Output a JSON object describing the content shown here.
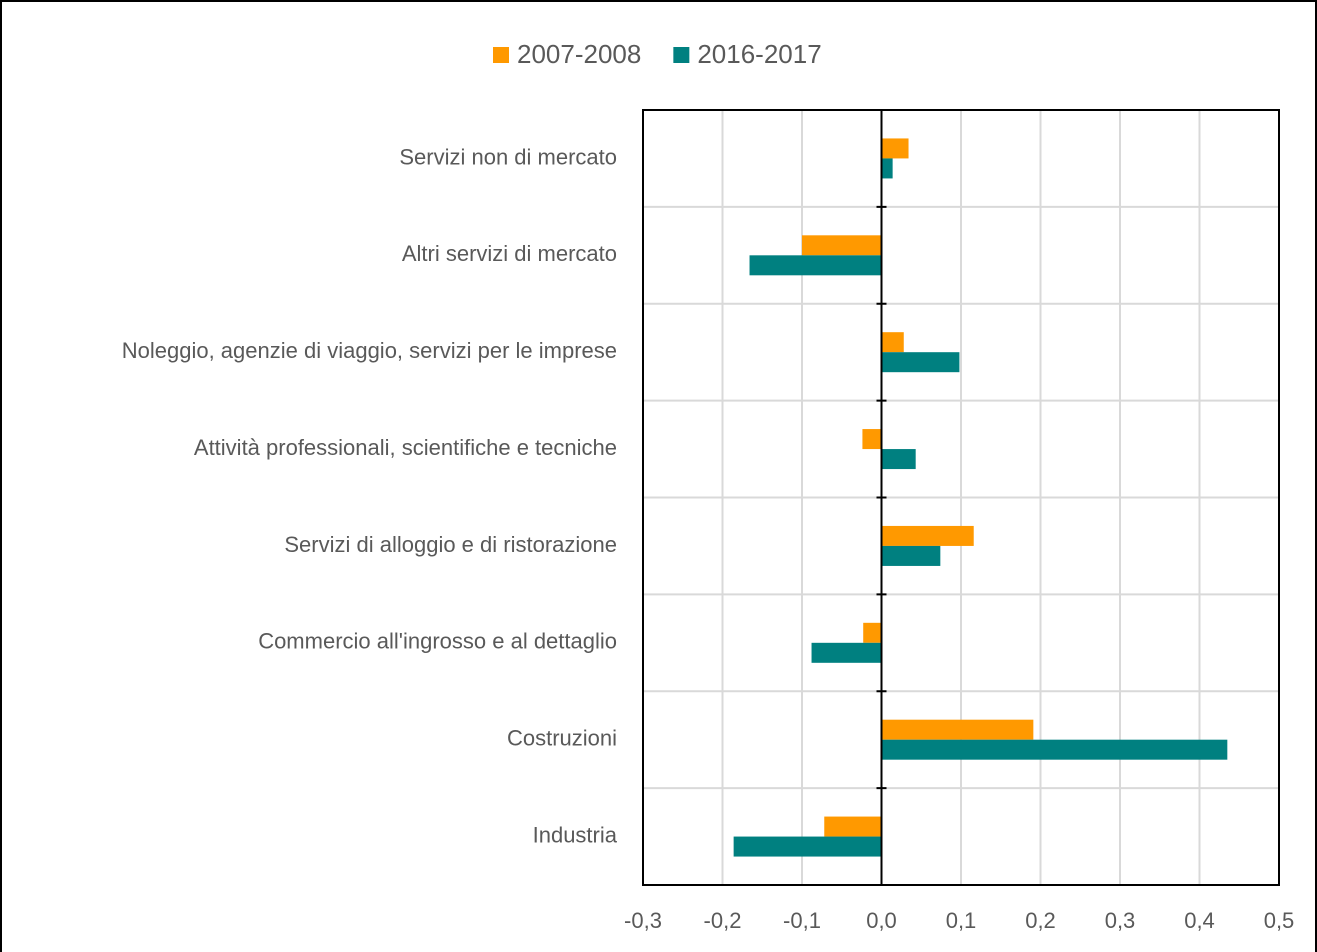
{
  "chart_data": {
    "type": "hbar",
    "categories": [
      "Servizi non di mercato",
      "Altri servizi di mercato",
      "Noleggio, agenzie di viaggio, servizi per le imprese",
      "Attività professionali, scientifiche e tecniche",
      "Servizi di alloggio e di ristorazione",
      "Commercio all'ingrosso e al dettaglio",
      "Costruzioni",
      "Industria"
    ],
    "series": [
      {
        "name": "2007-2008",
        "color": "#ff9900",
        "values": [
          0.034,
          -0.1,
          0.028,
          -0.024,
          0.116,
          -0.023,
          0.191,
          -0.072
        ]
      },
      {
        "name": "2016-2017",
        "color": "#008080",
        "values": [
          0.014,
          -0.166,
          0.098,
          0.043,
          0.074,
          -0.088,
          0.435,
          -0.186
        ]
      }
    ],
    "xlim": [
      -0.3,
      0.5
    ],
    "xticks": [
      {
        "value": -0.3,
        "label": "-0,3"
      },
      {
        "value": -0.2,
        "label": "-0,2"
      },
      {
        "value": -0.1,
        "label": "-0,1"
      },
      {
        "value": 0,
        "label": "0,0"
      },
      {
        "value": 0.1,
        "label": "0,1"
      },
      {
        "value": 0.2,
        "label": "0,2"
      },
      {
        "value": 0.3,
        "label": "0,3"
      },
      {
        "value": 0.4,
        "label": "0,4"
      },
      {
        "value": 0.5,
        "label": "0,5"
      }
    ],
    "grid": true,
    "legend": "top"
  }
}
